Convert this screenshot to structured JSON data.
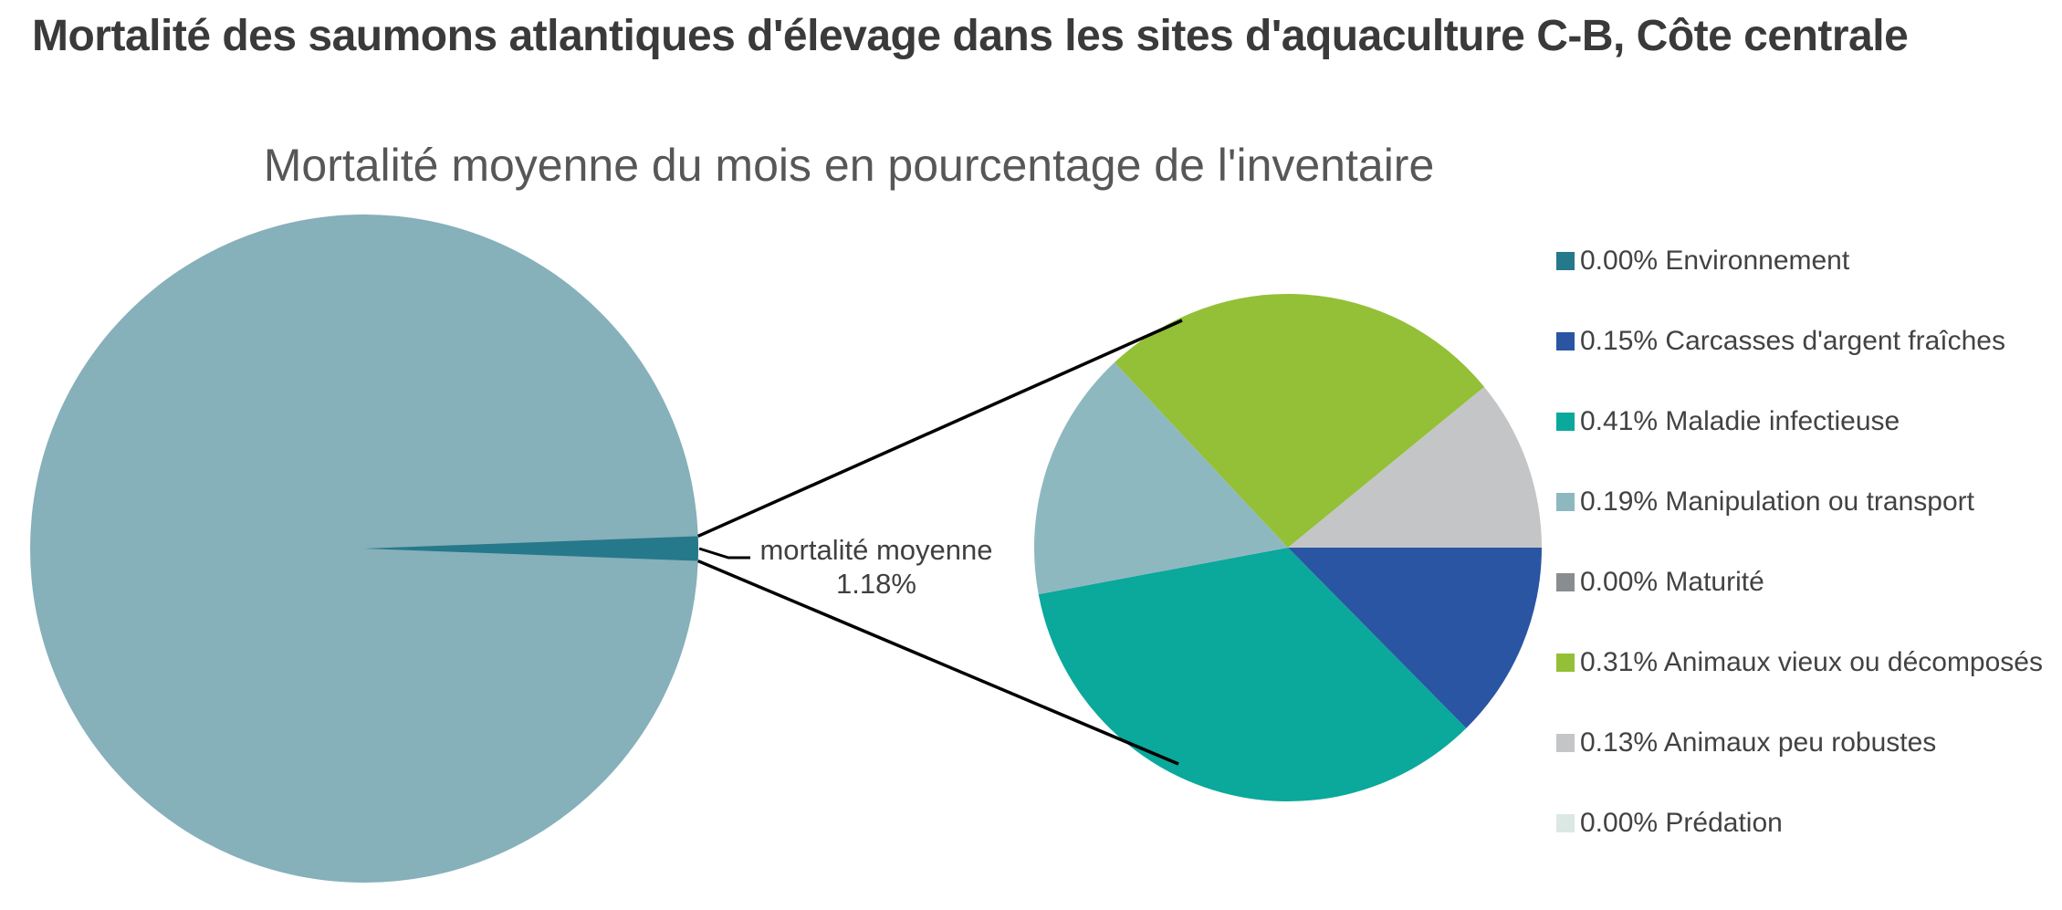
{
  "header": {
    "title": "Mortalité des saumons atlantiques d'élevage dans les sites d'aquaculture C-B, Côte centrale"
  },
  "chart": {
    "subtitle": "Mortalité moyenne du mois en pourcentage de l'inventaire",
    "center_label_line1": "mortalité moyenne",
    "center_label_line2": "1.18%"
  },
  "chart_data": {
    "type": "pie",
    "variant": "pie-of-pie",
    "title": "Mortalité moyenne du mois en pourcentage de l'inventaire",
    "legend_position": "right",
    "main_pie": {
      "description": "whole inventory with average monthly mortality wedge pointing at detail pie",
      "label": "mortalité moyenne",
      "value_pct": 1.18,
      "value_label": "1.18%",
      "inventory_color": "#86B0BA",
      "mortality_color": "#26798A",
      "connector_color": "#000000"
    },
    "detail_slices": [
      {
        "label": "Environnement",
        "value_pct": 0.0,
        "value_label": "0.00%",
        "color": "#26798A"
      },
      {
        "label": "Carcasses d'argent fraîches",
        "value_pct": 0.15,
        "value_label": "0.15%",
        "color": "#2A55A3"
      },
      {
        "label": "Maladie infectieuse",
        "value_pct": 0.41,
        "value_label": "0.41%",
        "color": "#0BA89C"
      },
      {
        "label": "Manipulation ou transport",
        "value_pct": 0.19,
        "value_label": "0.19%",
        "color": "#8EB8C0"
      },
      {
        "label": "Maturité",
        "value_pct": 0.0,
        "value_label": "0.00%",
        "color": "#8A8D8F"
      },
      {
        "label": "Animaux vieux ou décomposés",
        "value_pct": 0.31,
        "value_label": "0.31%",
        "color": "#93C036"
      },
      {
        "label": "Animaux peu robustes",
        "value_pct": 0.13,
        "value_label": "0.13%",
        "color": "#C3C5C7"
      },
      {
        "label": "Prédation",
        "value_pct": 0.0,
        "value_label": "0.00%",
        "color": "#DBE8E3"
      }
    ]
  }
}
